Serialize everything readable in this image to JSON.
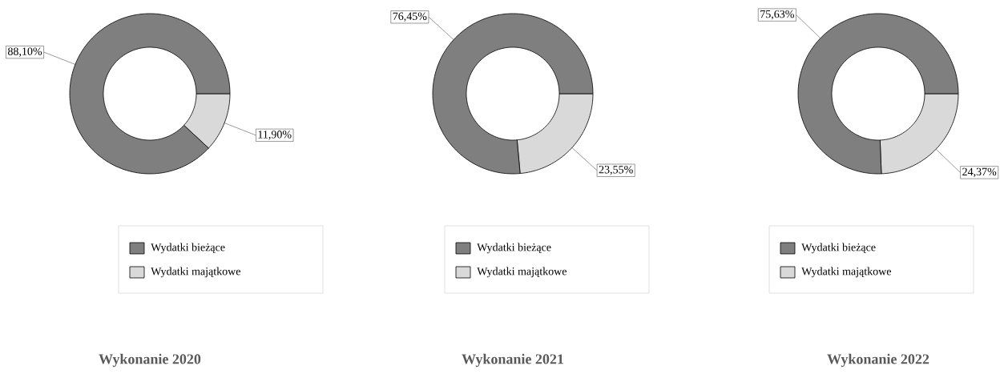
{
  "chart_data": [
    {
      "type": "donut",
      "title": "Wykonanie 2020",
      "categories": [
        "Wydatki bieżące",
        "Wydatki majątkowe"
      ],
      "values": [
        88.1,
        11.9
      ],
      "value_labels": [
        "88,10%",
        "11,90%"
      ],
      "colors": [
        "#7f7f7f",
        "#d9d9d9"
      ],
      "legend": "bottom"
    },
    {
      "type": "donut",
      "title": "Wykonanie 2021",
      "categories": [
        "Wydatki bieżące",
        "Wydatki majątkowe"
      ],
      "values": [
        76.45,
        23.55
      ],
      "value_labels": [
        "76,45%",
        "23,55%"
      ],
      "colors": [
        "#7f7f7f",
        "#d9d9d9"
      ],
      "legend": "bottom"
    },
    {
      "type": "donut",
      "title": "Wykonanie 2022",
      "categories": [
        "Wydatki bieżące",
        "Wydatki majątkowe"
      ],
      "values": [
        75.63,
        24.37
      ],
      "value_labels": [
        "75,63%",
        "24,37%"
      ],
      "colors": [
        "#7f7f7f",
        "#d9d9d9"
      ],
      "legend": "bottom"
    }
  ]
}
